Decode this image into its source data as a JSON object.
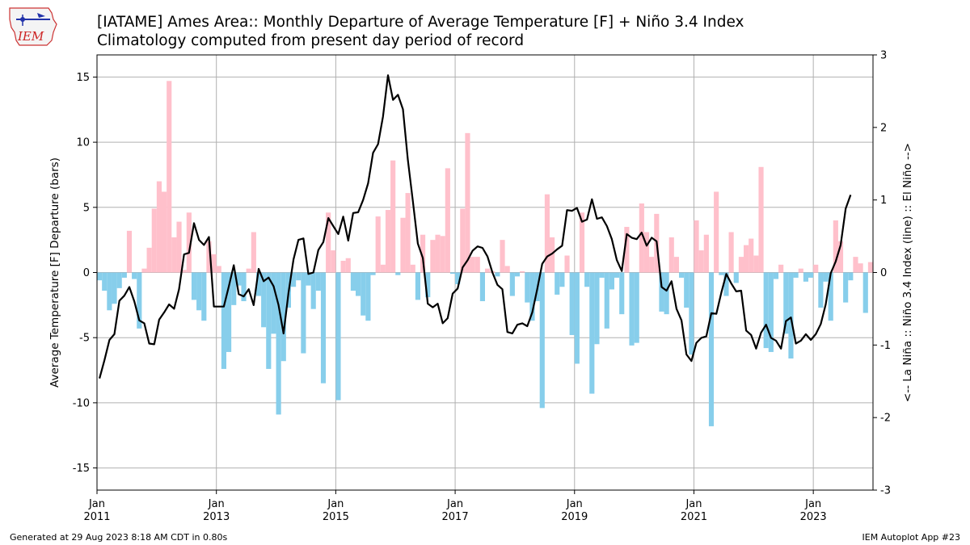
{
  "header": {
    "title_line1": "[IATAME] Ames Area:: Monthly Departure of Average Temperature [F] + Niño 3.4 Index",
    "title_line2": "Climatology computed from present day period of record",
    "logo_text": "IEM"
  },
  "footer": {
    "generated": "Generated at 29 Aug 2023 8:18 AM CDT in 0.80s",
    "app": "IEM Autoplot App #23"
  },
  "colors": {
    "positive_bar": "#ffc0cb",
    "negative_bar": "#87ceeb",
    "line": "#000000",
    "grid": "#b0b0b0"
  },
  "chart_data": {
    "type": "bar",
    "title": "[IATAME] Ames Area:: Monthly Departure of Average Temperature [F] + Niño 3.4 Index",
    "subtitle": "Climatology computed from present day period of record",
    "ylabel": "Average Temperature [F] Departure (bars)",
    "y2label": "<-- La Niña :: Niño 3.4 Index (line) :: El Niño -->",
    "ylim": [
      -16.7,
      16.7
    ],
    "y2lim": [
      -3,
      3
    ],
    "yticks": [
      -15,
      -10,
      -5,
      0,
      5,
      10,
      15
    ],
    "y2ticks": [
      -3,
      -2,
      -1,
      0,
      1,
      2,
      3
    ],
    "xlim": [
      "2011-01",
      "2024-01"
    ],
    "xticks": [
      {
        "month": "Jan",
        "year": "2011",
        "at": "2011-01"
      },
      {
        "month": "Jan",
        "year": "2013",
        "at": "2013-01"
      },
      {
        "month": "Jan",
        "year": "2015",
        "at": "2015-01"
      },
      {
        "month": "Jan",
        "year": "2017",
        "at": "2017-01"
      },
      {
        "month": "Jan",
        "year": "2019",
        "at": "2019-01"
      },
      {
        "month": "Jan",
        "year": "2021",
        "at": "2021-01"
      },
      {
        "month": "Jan",
        "year": "2023",
        "at": "2023-01"
      }
    ],
    "grid": true,
    "start_month": "2011-01",
    "series": [
      {
        "name": "Monthly Departure of Average Temperature [F]",
        "style": "bars",
        "values": [
          -0.6,
          -1.4,
          -2.9,
          -2.4,
          -1.2,
          -0.4,
          3.2,
          -0.5,
          -4.3,
          0.3,
          1.9,
          4.9,
          7.0,
          6.2,
          14.7,
          2.7,
          3.9,
          0.2,
          4.6,
          -2.1,
          -2.9,
          -3.7,
          2.4,
          1.4,
          0.5,
          -7.4,
          -6.1,
          -2.5,
          -1.0,
          -2.2,
          0.3,
          3.1,
          -1.8,
          -4.2,
          -7.4,
          -4.7,
          -10.9,
          -6.8,
          -2.7,
          -1.1,
          -0.6,
          -6.2,
          -1.0,
          -2.8,
          -1.4,
          -8.5,
          4.6,
          1.7,
          -9.8,
          0.9,
          1.1,
          -1.4,
          -1.8,
          -3.3,
          -3.7,
          -0.2,
          4.3,
          0.6,
          4.8,
          8.6,
          -0.2,
          4.2,
          6.1,
          0.6,
          -2.1,
          2.9,
          -1.9,
          2.5,
          2.9,
          2.8,
          8.0,
          -0.1,
          -0.9,
          4.9,
          10.7,
          1.2,
          1.2,
          -2.2,
          0.3,
          0.1,
          -0.3,
          2.5,
          0.5,
          -1.8,
          -0.3,
          0.1,
          -2.3,
          -3.7,
          -2.2,
          -10.4,
          6.0,
          2.7,
          -1.7,
          -1.1,
          1.3,
          -4.8,
          -7.0,
          4.6,
          -1.1,
          -9.3,
          -5.5,
          -0.4,
          -4.3,
          -1.3,
          -0.4,
          -3.2,
          3.5,
          -5.6,
          -5.4,
          5.3,
          3.1,
          1.2,
          4.5,
          -3.0,
          -3.2,
          2.7,
          1.2,
          -0.4,
          -2.7,
          -6.3,
          4.0,
          1.7,
          2.9,
          -11.8,
          6.2,
          -0.2,
          -1.8,
          3.1,
          -0.8,
          1.2,
          2.1,
          2.6,
          1.3,
          8.1,
          -5.8,
          -6.1,
          -0.5,
          0.6,
          -4.7,
          -6.6,
          -0.4,
          0.3,
          -0.7,
          -0.4,
          0.6,
          -2.7,
          -0.7,
          -3.7,
          4.0,
          2.4,
          -2.3,
          -0.6,
          1.2,
          0.7,
          -3.1,
          0.8
        ]
      },
      {
        "name": "Niño 3.4 Index",
        "style": "line",
        "axis": "y2",
        "values": [
          -1.46,
          -1.21,
          -0.93,
          -0.85,
          -0.39,
          -0.32,
          -0.2,
          -0.4,
          -0.66,
          -0.7,
          -0.98,
          -0.99,
          -0.65,
          -0.55,
          -0.44,
          -0.5,
          -0.23,
          0.25,
          0.27,
          0.68,
          0.45,
          0.38,
          0.49,
          -0.47,
          -0.47,
          -0.47,
          -0.19,
          0.1,
          -0.3,
          -0.33,
          -0.23,
          -0.45,
          0.05,
          -0.12,
          -0.07,
          -0.19,
          -0.45,
          -0.84,
          -0.28,
          0.18,
          0.45,
          0.47,
          -0.02,
          0.0,
          0.31,
          0.42,
          0.75,
          0.64,
          0.53,
          0.77,
          0.44,
          0.82,
          0.83,
          1.0,
          1.23,
          1.65,
          1.77,
          2.15,
          2.72,
          2.38,
          2.45,
          2.25,
          1.55,
          0.98,
          0.4,
          0.2,
          -0.43,
          -0.48,
          -0.43,
          -0.7,
          -0.63,
          -0.29,
          -0.22,
          0.07,
          0.17,
          0.3,
          0.36,
          0.34,
          0.22,
          0.0,
          -0.17,
          -0.23,
          -0.82,
          -0.84,
          -0.72,
          -0.7,
          -0.74,
          -0.55,
          -0.23,
          0.12,
          0.22,
          0.26,
          0.32,
          0.37,
          0.86,
          0.85,
          0.89,
          0.7,
          0.73,
          1.01,
          0.74,
          0.76,
          0.64,
          0.46,
          0.17,
          0.02,
          0.53,
          0.48,
          0.46,
          0.55,
          0.37,
          0.48,
          0.43,
          -0.2,
          -0.25,
          -0.12,
          -0.5,
          -0.66,
          -1.13,
          -1.22,
          -0.97,
          -0.9,
          -0.88,
          -0.56,
          -0.57,
          -0.28,
          -0.02,
          -0.15,
          -0.26,
          -0.25,
          -0.8,
          -0.86,
          -1.05,
          -0.83,
          -0.72,
          -0.9,
          -0.94,
          -1.05,
          -0.67,
          -0.62,
          -0.98,
          -0.94,
          -0.85,
          -0.93,
          -0.85,
          -0.71,
          -0.44,
          -0.01,
          0.15,
          0.38,
          0.88,
          1.07
        ]
      }
    ]
  }
}
